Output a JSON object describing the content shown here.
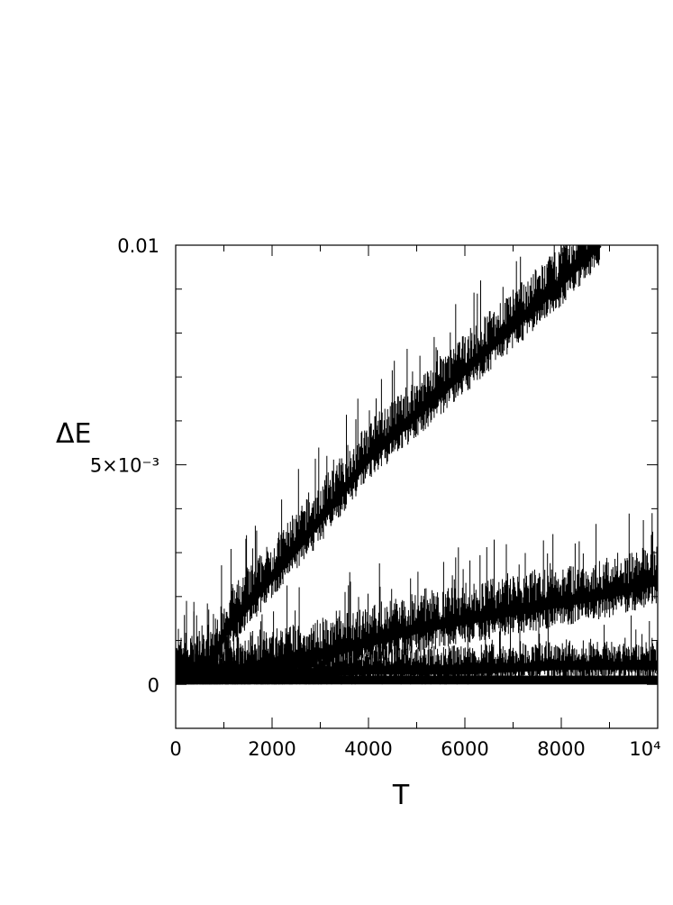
{
  "chart_data": {
    "type": "line",
    "title": "",
    "xlabel": "T",
    "ylabel": "ΔE",
    "xlim": [
      0,
      10000
    ],
    "ylim": [
      -0.001,
      0.01
    ],
    "x_ticks": [
      {
        "value": 0,
        "label": "0"
      },
      {
        "value": 2000,
        "label": "2000"
      },
      {
        "value": 4000,
        "label": "4000"
      },
      {
        "value": 6000,
        "label": "6000"
      },
      {
        "value": 8000,
        "label": "8000"
      },
      {
        "value": 10000,
        "label": "10⁴"
      }
    ],
    "y_ticks": [
      {
        "value": 0,
        "label": "0"
      },
      {
        "value": 0.005,
        "label": "5×10⁻³"
      },
      {
        "value": 0.01,
        "label": "0.01"
      }
    ],
    "grid": false,
    "legend": "none",
    "line_color": "#000000",
    "series": [
      {
        "x": [
          0,
          700,
          1000,
          2000,
          3000,
          4000,
          5000,
          6000,
          7000,
          8000,
          8800
        ],
        "y": [
          0.0002,
          0.0003,
          0.0011,
          0.0024,
          0.0037,
          0.0051,
          0.0061,
          0.0071,
          0.0081,
          0.0091,
          0.01
        ]
      },
      {
        "x": [
          0,
          1000,
          2000,
          3000,
          4000,
          5000,
          6000,
          7000,
          8000,
          9000,
          10000
        ],
        "y": [
          0.0001,
          0.0002,
          0.0004,
          0.0006,
          0.0009,
          0.0012,
          0.0014,
          0.0016,
          0.0018,
          0.002,
          0.0023
        ]
      },
      {
        "x": [
          0,
          2000,
          4000,
          6000,
          8000,
          10000
        ],
        "y": [
          0.0001,
          0.0002,
          0.0003,
          0.0003,
          0.0004,
          0.0004
        ]
      }
    ]
  }
}
